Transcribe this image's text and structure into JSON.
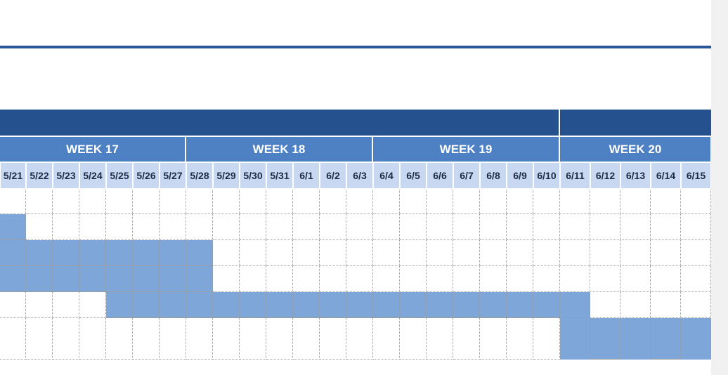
{
  "colors": {
    "header_band": "#26518f",
    "week_band": "#4d81c3",
    "date_band": "#c9d8f1",
    "task_fill": "#7ea6d8",
    "rule": "#2a5597"
  },
  "weeks": [
    {
      "label": "WEEK 17"
    },
    {
      "label": "WEEK 18"
    },
    {
      "label": "WEEK 19"
    },
    {
      "label": "WEEK 20"
    }
  ],
  "dates": [
    "5/21",
    "5/22",
    "5/23",
    "5/24",
    "5/25",
    "5/26",
    "5/27",
    "5/28",
    "5/29",
    "5/30",
    "5/31",
    "6/1",
    "6/2",
    "6/3",
    "6/4",
    "6/5",
    "6/6",
    "6/7",
    "6/8",
    "6/9",
    "6/10",
    "6/11",
    "6/12",
    "6/13",
    "6/14",
    "6/15"
  ],
  "tasks": [
    {
      "start": null,
      "end": null
    },
    {
      "start": 0,
      "end": 0
    },
    {
      "start": 0,
      "end": 7
    },
    {
      "start": 0,
      "end": 7
    },
    {
      "start": 4,
      "end": 21
    },
    {
      "start": 21,
      "end": 25
    }
  ]
}
